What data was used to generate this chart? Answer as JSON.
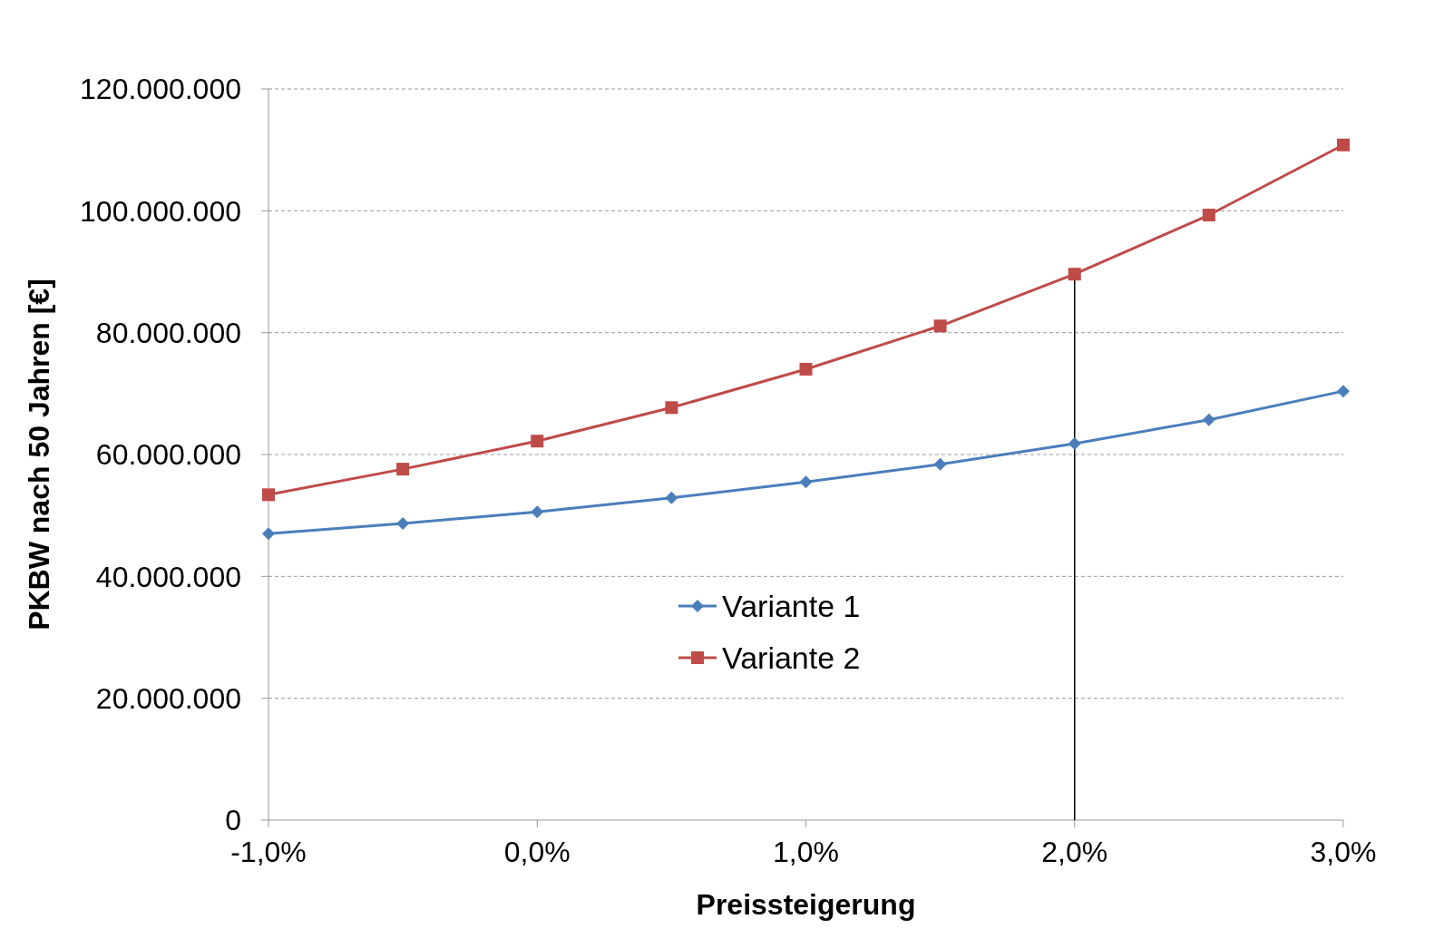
{
  "chart_data": {
    "type": "line",
    "xlabel": "Preissteigerung",
    "ylabel": "PKBW nach 50 Jahren [€]",
    "x": [
      -1,
      -0.5,
      0,
      0.5,
      1,
      1.5,
      2,
      2.5,
      3
    ],
    "series": [
      {
        "name": "Variante 1",
        "color": "#4a7ebb",
        "marker": "diamond",
        "values": [
          47000000,
          48700000,
          50600000,
          52900000,
          55500000,
          58400000,
          61800000,
          65700000,
          70400000
        ]
      },
      {
        "name": "Variante 2",
        "color": "#be4b48",
        "marker": "square",
        "values": [
          53400000,
          57600000,
          62200000,
          67700000,
          74000000,
          81100000,
          89600000,
          99300000,
          110800000
        ]
      }
    ],
    "xlim": [
      -1,
      3
    ],
    "xticks": [
      {
        "value": -1,
        "label": "-1,0%"
      },
      {
        "value": 0,
        "label": "0,0%"
      },
      {
        "value": 1,
        "label": "1,0%"
      },
      {
        "value": 2,
        "label": "2,0%"
      },
      {
        "value": 3,
        "label": "3,0%"
      }
    ],
    "ylim": [
      0,
      120000000
    ],
    "yticks": [
      {
        "value": 0,
        "label": "0"
      },
      {
        "value": 20000000,
        "label": "20.000.000"
      },
      {
        "value": 40000000,
        "label": "40.000.000"
      },
      {
        "value": 60000000,
        "label": "60.000.000"
      },
      {
        "value": 80000000,
        "label": "80.000.000"
      },
      {
        "value": 100000000,
        "label": "100.000.000"
      },
      {
        "value": 120000000,
        "label": "120.000.000"
      }
    ],
    "grid": "y",
    "legend": "bottom",
    "line_style": "solid",
    "ref_lines": [
      {
        "axis": "x",
        "value": 2,
        "color": "#000000"
      }
    ]
  }
}
